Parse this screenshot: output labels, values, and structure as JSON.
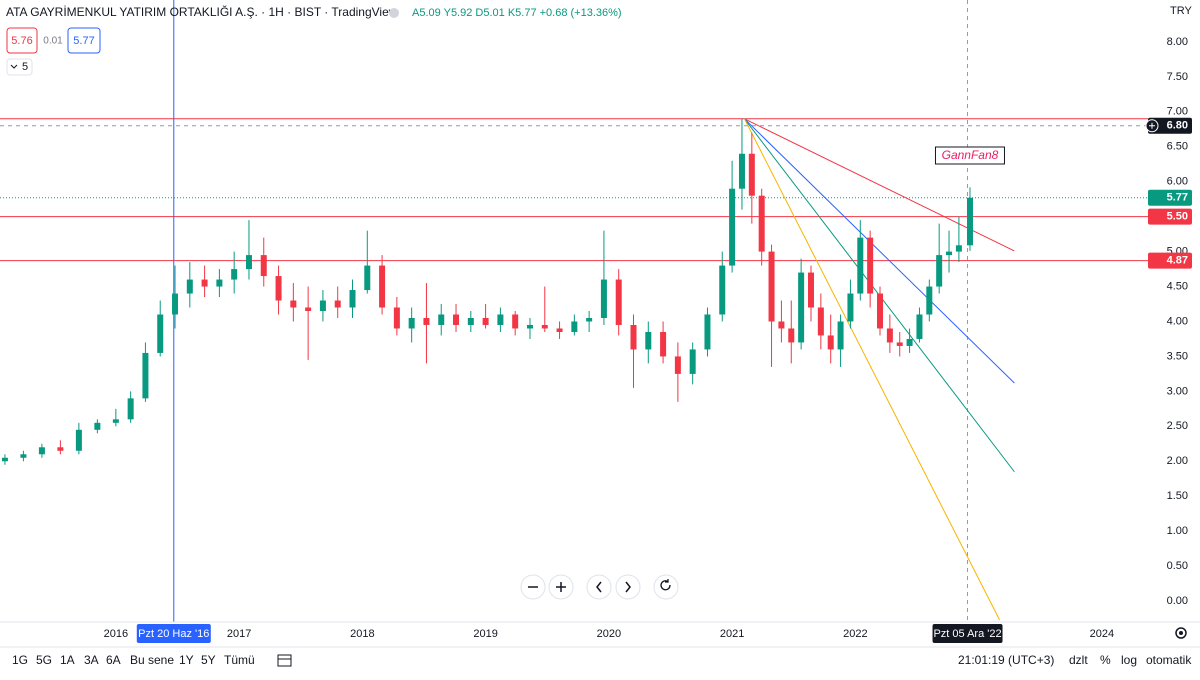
{
  "chart_data": {
    "type": "candlestick",
    "title": "ATA GAYRİMENKUL YATIRIM ORTAKLIĞI A.Ş. · 1H · BIST · TradingView",
    "ohlc_text": "A5.09 Y5.92 D5.01 K5.77 +0.68 (+13.36%)",
    "currency": "TRY",
    "bid": "5.76",
    "spread": "0.01",
    "ask": "5.77",
    "indicator_count": "5",
    "up_color": "#089981",
    "down_color": "#f23645",
    "x": [
      2015.1,
      2015.25,
      2015.4,
      2015.55,
      2015.7,
      2015.85,
      2016.0,
      2016.12,
      2016.24,
      2016.36,
      2016.48,
      2016.6,
      2016.72,
      2016.84,
      2016.96,
      2017.08,
      2017.2,
      2017.32,
      2017.44,
      2017.56,
      2017.68,
      2017.8,
      2017.92,
      2018.04,
      2018.16,
      2018.28,
      2018.4,
      2018.52,
      2018.64,
      2018.76,
      2018.88,
      2019.0,
      2019.12,
      2019.24,
      2019.36,
      2019.48,
      2019.6,
      2019.72,
      2019.84,
      2019.96,
      2020.08,
      2020.2,
      2020.32,
      2020.44,
      2020.56,
      2020.68,
      2020.8,
      2020.92,
      2021.0,
      2021.08,
      2021.16,
      2021.24,
      2021.32,
      2021.4,
      2021.48,
      2021.56,
      2021.64,
      2021.72,
      2021.8,
      2021.88,
      2021.96,
      2022.04,
      2022.12,
      2022.2,
      2022.28,
      2022.36,
      2022.44,
      2022.52,
      2022.6,
      2022.68,
      2022.76,
      2022.84,
      2022.93
    ],
    "open": [
      2.0,
      2.05,
      2.1,
      2.2,
      2.15,
      2.45,
      2.55,
      2.6,
      2.9,
      3.55,
      4.1,
      4.4,
      4.6,
      4.5,
      4.6,
      4.75,
      4.95,
      4.65,
      4.3,
      4.2,
      4.15,
      4.3,
      4.2,
      4.45,
      4.8,
      4.2,
      3.9,
      4.05,
      3.95,
      4.1,
      3.95,
      4.05,
      3.95,
      4.1,
      3.9,
      3.95,
      3.9,
      3.85,
      4.0,
      4.05,
      4.6,
      3.95,
      3.6,
      3.85,
      3.5,
      3.25,
      3.6,
      4.1,
      4.8,
      5.9,
      6.4,
      5.8,
      5.0,
      4.0,
      3.9,
      3.7,
      4.7,
      4.2,
      3.8,
      3.6,
      4.0,
      4.4,
      5.2,
      4.4,
      3.9,
      3.7,
      3.65,
      3.75,
      4.1,
      4.5,
      4.95,
      5.0,
      5.09
    ],
    "high": [
      2.1,
      2.15,
      2.25,
      2.3,
      2.55,
      2.6,
      2.75,
      3.0,
      3.7,
      4.3,
      4.8,
      4.85,
      4.8,
      4.75,
      5.0,
      5.45,
      5.2,
      4.8,
      4.55,
      4.5,
      4.45,
      4.5,
      4.6,
      5.3,
      4.95,
      4.35,
      4.2,
      4.55,
      4.25,
      4.25,
      4.15,
      4.25,
      4.2,
      4.15,
      4.05,
      4.5,
      4.0,
      4.1,
      4.15,
      5.3,
      4.75,
      4.1,
      4.0,
      4.0,
      3.7,
      3.7,
      4.2,
      5.0,
      6.3,
      6.9,
      6.7,
      5.9,
      5.1,
      4.3,
      4.3,
      4.9,
      4.8,
      4.4,
      4.1,
      4.1,
      4.6,
      5.45,
      5.3,
      4.5,
      4.1,
      3.85,
      3.9,
      4.2,
      4.6,
      5.4,
      5.3,
      5.5,
      5.92
    ],
    "low": [
      1.95,
      2.0,
      2.05,
      2.1,
      2.1,
      2.4,
      2.5,
      2.55,
      2.85,
      3.5,
      3.9,
      4.2,
      4.35,
      4.35,
      4.4,
      4.6,
      4.5,
      4.1,
      4.0,
      3.45,
      4.0,
      4.05,
      4.05,
      4.4,
      4.1,
      3.8,
      3.7,
      3.4,
      3.8,
      3.85,
      3.85,
      3.9,
      3.85,
      3.8,
      3.75,
      3.85,
      3.75,
      3.8,
      3.85,
      3.95,
      3.8,
      3.05,
      3.4,
      3.4,
      2.85,
      3.1,
      3.5,
      4.0,
      4.7,
      5.6,
      5.4,
      4.8,
      3.35,
      3.7,
      3.4,
      3.6,
      4.0,
      3.6,
      3.4,
      3.35,
      3.9,
      4.3,
      4.2,
      3.8,
      3.55,
      3.5,
      3.55,
      3.7,
      4.0,
      4.4,
      4.7,
      4.85,
      5.01
    ],
    "close": [
      2.05,
      2.1,
      2.2,
      2.15,
      2.45,
      2.55,
      2.6,
      2.9,
      3.55,
      4.1,
      4.4,
      4.6,
      4.5,
      4.6,
      4.75,
      4.95,
      4.65,
      4.3,
      4.2,
      4.15,
      4.3,
      4.2,
      4.45,
      4.8,
      4.2,
      3.9,
      4.05,
      3.95,
      4.1,
      3.95,
      4.05,
      3.95,
      4.1,
      3.9,
      3.95,
      3.9,
      3.85,
      4.0,
      4.05,
      4.6,
      3.95,
      3.6,
      3.85,
      3.5,
      3.25,
      3.6,
      4.1,
      4.8,
      5.9,
      6.4,
      5.8,
      5.0,
      4.0,
      3.9,
      3.7,
      4.7,
      4.2,
      3.8,
      3.6,
      4.0,
      4.4,
      5.2,
      4.4,
      3.9,
      3.7,
      3.65,
      3.75,
      4.1,
      4.5,
      4.95,
      5.0,
      5.09,
      5.77
    ],
    "xlim": [
      2015.06,
      2024.35
    ],
    "xticks": [
      2016,
      2017,
      2018,
      2019,
      2020,
      2021,
      2022,
      2024
    ],
    "ylim": [
      -0.3,
      8.6
    ],
    "yticks": [
      {
        "value": 0,
        "label": "0.00"
      },
      {
        "value": 0.5,
        "label": "0.50"
      },
      {
        "value": 1,
        "label": "1.00"
      },
      {
        "value": 1.5,
        "label": "1.50"
      },
      {
        "value": 2,
        "label": "2.00"
      },
      {
        "value": 2.5,
        "label": "2.50"
      },
      {
        "value": 3,
        "label": "3.00"
      },
      {
        "value": 3.5,
        "label": "3.50"
      },
      {
        "value": 4,
        "label": "4.00"
      },
      {
        "value": 4.5,
        "label": "4.50"
      },
      {
        "value": 5,
        "label": "5.00"
      },
      {
        "value": 5.5,
        "label": "5.50"
      },
      {
        "value": 6,
        "label": "6.00"
      },
      {
        "value": 6.5,
        "label": "6.50"
      },
      {
        "value": 7,
        "label": "7.00"
      },
      {
        "value": 7.5,
        "label": "7.50"
      },
      {
        "value": 8,
        "label": "8.00"
      }
    ],
    "grid": false,
    "hlines": [
      {
        "value": 6.9,
        "color": "#f23645"
      },
      {
        "value": 5.5,
        "label": "5.50",
        "color": "#f23645"
      },
      {
        "value": 4.87,
        "label": "4.87",
        "color": "#f23645"
      }
    ],
    "last_price": {
      "value": 5.77,
      "label": "5.77",
      "color": "#089981"
    },
    "vline": {
      "x": 2016.47,
      "label": "Pzt 20 Haz '16",
      "color": "#2962ff"
    },
    "crosshair": {
      "x": 2022.91,
      "x_label": "Pzt 05 Ara '22",
      "y": 6.8,
      "y_label": "6.80"
    },
    "gann_fan": {
      "label": "GannFan8",
      "origin": [
        2021.1,
        6.9
      ],
      "lines": [
        {
          "color": "#f23645",
          "end": [
            2023.29,
            5.01
          ]
        },
        {
          "color": "#2962ff",
          "end": [
            2023.29,
            3.12
          ]
        },
        {
          "color": "#089981",
          "end": [
            2023.29,
            1.85
          ]
        },
        {
          "color": "#f7b500",
          "end": [
            2023.17,
            -0.27
          ]
        }
      ]
    },
    "ranges": [
      "1G",
      "5G",
      "1A",
      "3A",
      "6A",
      "Bu sene",
      "1Y",
      "5Y",
      "Tümü"
    ],
    "clock": "21:01:19 (UTC+3)",
    "options": [
      "dzlt",
      "%",
      "log",
      "otomatik"
    ]
  }
}
